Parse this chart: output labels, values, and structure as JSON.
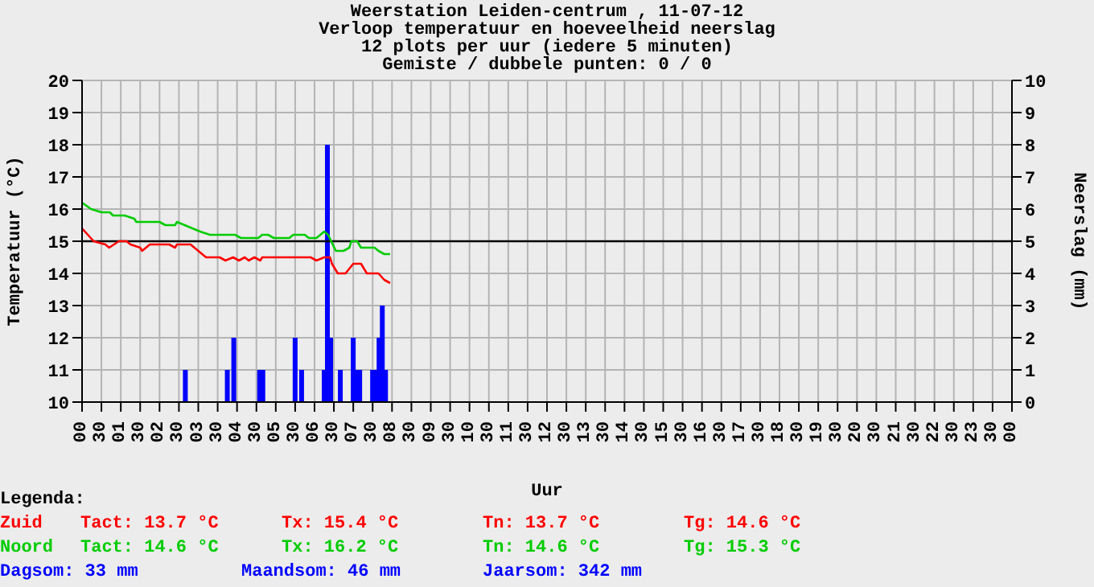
{
  "chart_data": {
    "type": "line",
    "title": "Weerstation Leiden-centrum , 11-07-12",
    "subtitle": "Verloop temperatuur en hoeveelheid neerslag\n12 plots per uur (iedere 5 minuten)\nGemiste / dubbele punten: 0 / 0",
    "xlabel": "Uur",
    "ylabel": "Temperatuur (°C)",
    "y2label": "Neerslag (mm)",
    "xlim": [
      "--07-11T00:00",
      "--07-12T00:00"
    ],
    "xticks": [
      {
        "value": "--07-11T00:00",
        "label": "00"
      },
      {
        "value": "--07-11T00:30",
        "label": "30"
      },
      {
        "value": "--07-11T01:00",
        "label": "01"
      },
      {
        "value": "--07-11T01:30",
        "label": "30"
      },
      {
        "value": "--07-11T02:00",
        "label": "02"
      },
      {
        "value": "--07-11T02:30",
        "label": "30"
      },
      {
        "value": "--07-11T03:00",
        "label": "03"
      },
      {
        "value": "--07-11T03:30",
        "label": "30"
      },
      {
        "value": "--07-11T04:00",
        "label": "04"
      },
      {
        "value": "--07-11T04:30",
        "label": "30"
      },
      {
        "value": "--07-11T05:00",
        "label": "05"
      },
      {
        "value": "--07-11T05:30",
        "label": "30"
      },
      {
        "value": "--07-11T06:00",
        "label": "06"
      },
      {
        "value": "--07-11T06:30",
        "label": "30"
      },
      {
        "value": "--07-11T07:00",
        "label": "07"
      },
      {
        "value": "--07-11T07:30",
        "label": "30"
      },
      {
        "value": "--07-11T08:00",
        "label": "08"
      },
      {
        "value": "--07-11T08:30",
        "label": "30"
      },
      {
        "value": "--07-11T09:00",
        "label": "09"
      },
      {
        "value": "--07-11T09:30",
        "label": "30"
      },
      {
        "value": "--07-11T10:00",
        "label": "10"
      },
      {
        "value": "--07-11T10:30",
        "label": "30"
      },
      {
        "value": "--07-11T11:00",
        "label": "11"
      },
      {
        "value": "--07-11T11:30",
        "label": "30"
      },
      {
        "value": "--07-11T12:00",
        "label": "12"
      },
      {
        "value": "--07-11T12:30",
        "label": "30"
      },
      {
        "value": "--07-11T13:00",
        "label": "13"
      },
      {
        "value": "--07-11T13:30",
        "label": "30"
      },
      {
        "value": "--07-11T14:00",
        "label": "14"
      },
      {
        "value": "--07-11T14:30",
        "label": "30"
      },
      {
        "value": "--07-11T15:00",
        "label": "15"
      },
      {
        "value": "--07-11T15:30",
        "label": "30"
      },
      {
        "value": "--07-11T16:00",
        "label": "16"
      },
      {
        "value": "--07-11T16:30",
        "label": "30"
      },
      {
        "value": "--07-11T17:00",
        "label": "17"
      },
      {
        "value": "--07-11T17:30",
        "label": "30"
      },
      {
        "value": "--07-11T18:00",
        "label": "18"
      },
      {
        "value": "--07-11T18:30",
        "label": "30"
      },
      {
        "value": "--07-11T19:00",
        "label": "19"
      },
      {
        "value": "--07-11T19:30",
        "label": "30"
      },
      {
        "value": "--07-11T20:00",
        "label": "20"
      },
      {
        "value": "--07-11T20:30",
        "label": "30"
      },
      {
        "value": "--07-11T21:00",
        "label": "21"
      },
      {
        "value": "--07-11T21:30",
        "label": "30"
      },
      {
        "value": "--07-11T22:00",
        "label": "22"
      },
      {
        "value": "--07-11T22:30",
        "label": "30"
      },
      {
        "value": "--07-11T23:00",
        "label": "23"
      },
      {
        "value": "--07-11T23:30",
        "label": "30"
      },
      {
        "value": "--07-12T00:00",
        "label": "00"
      }
    ],
    "ylim": [
      10,
      20
    ],
    "yticks": [
      10,
      11,
      12,
      13,
      14,
      15,
      16,
      17,
      18,
      19,
      20
    ],
    "y2lim": [
      0,
      10
    ],
    "y2ticks": [
      0,
      1,
      2,
      3,
      4,
      5,
      6,
      7,
      8,
      9,
      10
    ],
    "grid": true,
    "legend": "bottom",
    "ref_lines": [
      {
        "axis": "y",
        "value": 15,
        "color": "#000000"
      }
    ],
    "series": [
      {
        "name": "Zuid",
        "color": "#ff0000",
        "x": [
          "--07-11T00:00",
          "--07-11T00:09",
          "--07-11T00:18",
          "--07-11T00:36",
          "--07-11T00:42",
          "--07-11T00:57",
          "--07-11T01:09",
          "--07-11T01:15",
          "--07-11T01:30",
          "--07-11T01:33",
          "--07-11T01:45",
          "--07-11T02:15",
          "--07-11T02:24",
          "--07-11T02:27",
          "--07-11T02:48",
          "--07-11T03:00",
          "--07-11T03:12",
          "--07-11T03:33",
          "--07-11T03:42",
          "--07-11T03:54",
          "--07-11T04:03",
          "--07-11T04:12",
          "--07-11T04:18",
          "--07-11T04:27",
          "--07-11T04:36",
          "--07-11T04:39",
          "--07-11T05:54",
          "--07-11T06:03",
          "--07-11T06:15",
          "--07-11T06:24",
          "--07-11T06:27",
          "--07-11T06:36",
          "--07-11T06:48",
          "--07-11T07:00",
          "--07-11T07:12",
          "--07-11T07:21",
          "--07-11T07:39",
          "--07-11T07:48",
          "--07-11T07:57"
        ],
        "values": [
          15.4,
          15.2,
          15.0,
          14.9,
          14.8,
          15.0,
          15.0,
          14.9,
          14.8,
          14.7,
          14.9,
          14.9,
          14.8,
          14.9,
          14.9,
          14.7,
          14.5,
          14.5,
          14.4,
          14.5,
          14.4,
          14.5,
          14.4,
          14.5,
          14.4,
          14.5,
          14.5,
          14.4,
          14.5,
          14.5,
          14.3,
          14.0,
          14.0,
          14.3,
          14.3,
          14.0,
          14.0,
          13.8,
          13.7
        ]
      },
      {
        "name": "Noord",
        "color": "#00cc00",
        "x": [
          "--07-11T00:00",
          "--07-11T00:14",
          "--07-11T00:30",
          "--07-11T00:43",
          "--07-11T00:48",
          "--07-11T01:06",
          "--07-11T01:21",
          "--07-11T01:24",
          "--07-11T02:00",
          "--07-11T02:09",
          "--07-11T02:24",
          "--07-11T02:27",
          "--07-11T02:39",
          "--07-11T02:51",
          "--07-11T03:03",
          "--07-11T03:18",
          "--07-11T03:57",
          "--07-11T04:06",
          "--07-11T04:12",
          "--07-11T04:33",
          "--07-11T04:39",
          "--07-11T04:48",
          "--07-11T04:57",
          "--07-11T05:21",
          "--07-11T05:27",
          "--07-11T05:45",
          "--07-11T05:51",
          "--07-11T06:03",
          "--07-11T06:15",
          "--07-11T06:21",
          "--07-11T06:33",
          "--07-11T06:45",
          "--07-11T06:54",
          "--07-11T06:57",
          "--07-11T07:06",
          "--07-11T07:12",
          "--07-11T07:33",
          "--07-11T07:39",
          "--07-11T07:48",
          "--07-11T07:57"
        ],
        "values": [
          16.2,
          16.0,
          15.9,
          15.9,
          15.8,
          15.8,
          15.7,
          15.6,
          15.6,
          15.5,
          15.5,
          15.6,
          15.5,
          15.4,
          15.3,
          15.2,
          15.2,
          15.1,
          15.1,
          15.1,
          15.2,
          15.2,
          15.1,
          15.1,
          15.2,
          15.2,
          15.1,
          15.1,
          15.3,
          15.2,
          14.7,
          14.7,
          14.8,
          15.0,
          15.0,
          14.8,
          14.8,
          14.7,
          14.6,
          14.6
        ]
      },
      {
        "type": "bar",
        "axis": "y2",
        "color": "#0000ff",
        "x": [
          "--07-11T02:40",
          "--07-11T03:45",
          "--07-11T03:55",
          "--07-11T04:35",
          "--07-11T04:40",
          "--07-11T05:30",
          "--07-11T05:40",
          "--07-11T06:15",
          "--07-11T06:20",
          "--07-11T06:25",
          "--07-11T06:40",
          "--07-11T07:00",
          "--07-11T07:05",
          "--07-11T07:10",
          "--07-11T07:30",
          "--07-11T07:35",
          "--07-11T07:40",
          "--07-11T07:45",
          "--07-11T07:50"
        ],
        "values": [
          1,
          1,
          2,
          1,
          1,
          2,
          1,
          1,
          8,
          2,
          1,
          2,
          1,
          1,
          1,
          1,
          2,
          3,
          1
        ]
      }
    ],
    "annotations": [
      "Legenda:",
      "Tact: 13.7 °C",
      "Tx: 15.4 °C",
      "Tn: 13.7 °C",
      "Tg: 14.6 °C",
      "Tact: 14.6 °C",
      "Tx: 16.2 °C",
      "Tn: 14.6 °C",
      "Tg: 15.3 °C",
      "Dagsom: 33 mm",
      "Maandsom: 46 mm",
      "Jaarsom: 342 mm"
    ]
  }
}
